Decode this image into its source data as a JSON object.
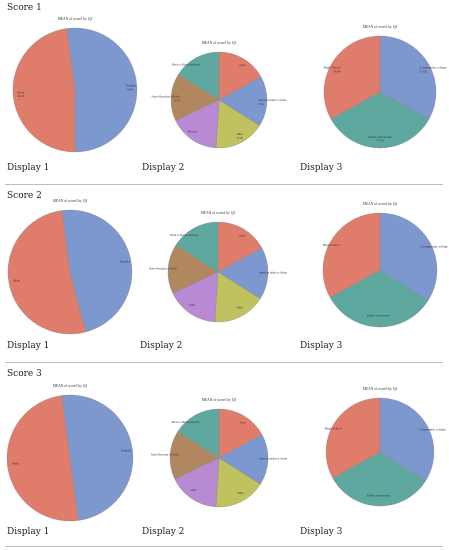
{
  "sections": [
    {
      "title": "Score 1",
      "captions": [
        "Display 1",
        "Display 2",
        "Display 3"
      ],
      "charts": [
        {
          "title": "MEAN of score1 by Q2",
          "labels": [
            "Female",
            "Male"
          ],
          "values": [
            0.52,
            0.48
          ],
          "value_labels": [
            "51.94",
            "49.06"
          ]
        },
        {
          "title": "MEAN of score1 by Q3",
          "labels": [
            "Asian",
            "American Indian or Alaska",
            "Other",
            "Hispanic",
            "Native Hawaiian or Pacific",
            "Black or African American"
          ],
          "values": [
            0.17,
            0.17,
            0.17,
            0.17,
            0.16,
            0.16
          ],
          "value_labels": [
            "",
            "55.01",
            "57.28",
            "",
            "47.38",
            ""
          ]
        },
        {
          "title": "MEAN of score1 by Q4",
          "labels": [
            "Community college",
            "Public university",
            "High School"
          ],
          "values": [
            0.33,
            0.34,
            0.33
          ],
          "value_labels": [
            "57.66",
            "57.64",
            "58.49"
          ]
        }
      ]
    },
    {
      "title": "Score 2",
      "captions": [
        "Display 1",
        "Display 2",
        "Display 3"
      ],
      "charts": [
        {
          "title": "MEAN of score2 by Q2",
          "labels": [
            "Female",
            "Male"
          ],
          "values": [
            0.48,
            0.52
          ],
          "value_labels": [
            "",
            ""
          ]
        },
        {
          "title": "MEAN of score2 by Q3",
          "labels": [
            "Asian",
            "American Indian or Alaska",
            "White",
            "Other",
            "Native Hawaiian or Pacific",
            "Black or African American"
          ],
          "values": [
            0.17,
            0.17,
            0.17,
            0.17,
            0.16,
            0.16
          ],
          "value_labels": [
            "",
            "",
            "",
            "",
            "",
            ""
          ]
        },
        {
          "title": "MEAN of score2 by Q4",
          "labels": [
            "Community college",
            "Public university",
            "High School"
          ],
          "values": [
            0.34,
            0.33,
            0.33
          ],
          "value_labels": [
            "",
            "",
            ""
          ]
        }
      ]
    },
    {
      "title": "Score 3",
      "captions": [
        "Display 1",
        "Display 2",
        "Display 3"
      ],
      "charts": [
        {
          "title": "MEAN of score3 by Q2",
          "labels": [
            "Female",
            "Male"
          ],
          "values": [
            0.5,
            0.5
          ],
          "value_labels": [
            "",
            ""
          ]
        },
        {
          "title": "MEAN of score3 by Q3",
          "labels": [
            "Asian",
            "American Indian or Alaska",
            "White",
            "Other",
            "Native Hawaiian or Pacific",
            "Black or African American"
          ],
          "values": [
            0.17,
            0.17,
            0.17,
            0.17,
            0.16,
            0.16
          ],
          "value_labels": [
            "",
            "",
            "",
            "",
            "",
            ""
          ]
        },
        {
          "title": "MEAN of score3 by Q4",
          "labels": [
            "Community college",
            "Public university",
            "High School"
          ],
          "values": [
            0.34,
            0.33,
            0.33
          ],
          "value_labels": [
            "",
            "",
            ""
          ]
        }
      ]
    }
  ],
  "chart_data": [
    {
      "type": "pie",
      "title": "MEAN of score1 by Q2",
      "categories": [
        "Female",
        "Male"
      ],
      "values": [
        51.94,
        49.06
      ]
    },
    {
      "type": "pie",
      "title": "MEAN of score1 by Q3",
      "categories": [
        "Asian",
        "American Indian or Alaska",
        "Other",
        "Hispanic",
        "Native Hawaiian or Pacific",
        "Black or African American"
      ],
      "values": [
        17,
        17,
        17,
        17,
        16,
        16
      ]
    },
    {
      "type": "pie",
      "title": "MEAN of score1 by Q4",
      "categories": [
        "Community college",
        "Public university",
        "High School"
      ],
      "values": [
        57.66,
        57.64,
        58.49
      ]
    },
    {
      "type": "pie",
      "title": "MEAN of score2 by Q2",
      "categories": [
        "Female",
        "Male"
      ],
      "values": [
        48,
        52
      ]
    },
    {
      "type": "pie",
      "title": "MEAN of score2 by Q3",
      "categories": [
        "Asian",
        "American Indian or Alaska",
        "White",
        "Other",
        "Native Hawaiian or Pacific",
        "Black or African American"
      ],
      "values": [
        17,
        17,
        17,
        17,
        16,
        16
      ]
    },
    {
      "type": "pie",
      "title": "MEAN of score2 by Q4",
      "categories": [
        "Community college",
        "Public university",
        "High School"
      ],
      "values": [
        34,
        33,
        33
      ]
    },
    {
      "type": "pie",
      "title": "MEAN of score3 by Q2",
      "categories": [
        "Female",
        "Male"
      ],
      "values": [
        50,
        50
      ]
    },
    {
      "type": "pie",
      "title": "MEAN of score3 by Q3",
      "categories": [
        "Asian",
        "American Indian or Alaska",
        "White",
        "Other",
        "Native Hawaiian or Pacific",
        "Black or African American"
      ],
      "values": [
        17,
        17,
        17,
        17,
        16,
        16
      ]
    },
    {
      "type": "pie",
      "title": "MEAN of score3 by Q4",
      "categories": [
        "Community college",
        "Public university",
        "High School"
      ],
      "values": [
        34,
        33,
        33
      ]
    }
  ],
  "colors": {
    "blue": "#7d97cf",
    "salmon": "#e07c6c",
    "teal": "#5ea8a0",
    "brown": "#b0875e",
    "purple": "#b98ad4",
    "olive": "#bfc25f",
    "separator": "#bdbdbd"
  }
}
